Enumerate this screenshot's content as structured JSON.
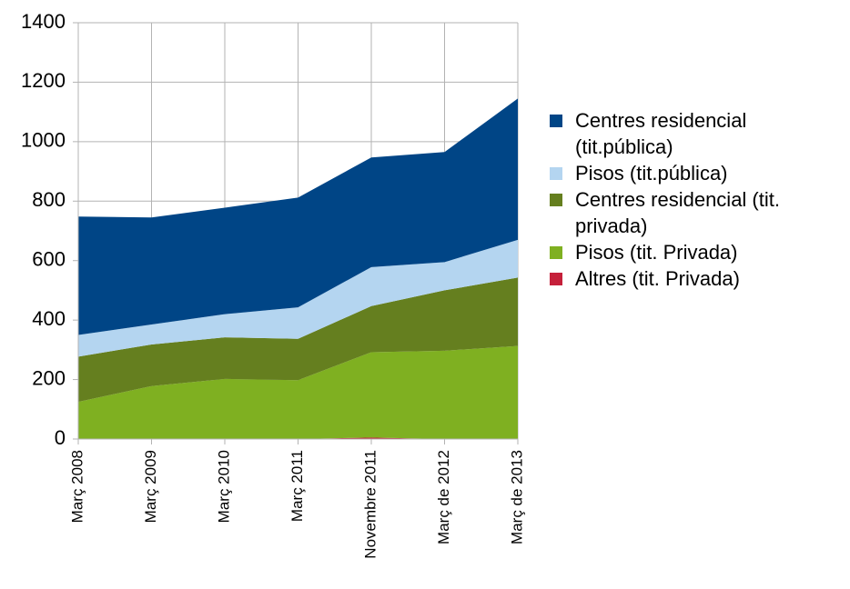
{
  "chart_data": {
    "type": "stacked_area",
    "categories": [
      "Març 2008",
      "Març 2009",
      "Març 2010",
      "Març 2011",
      "Novembre 2011",
      "Març de 2012",
      "Març de 2013"
    ],
    "series": [
      {
        "name": "Centres residencial (tit.pública)",
        "color": "#004586",
        "values": [
          398,
          360,
          358,
          369,
          369,
          370,
          475
        ]
      },
      {
        "name": "Pisos (tit.pública)",
        "color": "#b4d5f0",
        "values": [
          73,
          67,
          78,
          106,
          131,
          95,
          127
        ]
      },
      {
        "name": "Centres residencial (tit. privada)",
        "color": "#657f1f",
        "values": [
          152,
          140,
          140,
          139,
          155,
          203,
          230
        ]
      },
      {
        "name": "Pisos (tit. Privada)",
        "color": "#7fb021",
        "values": [
          125,
          178,
          202,
          198,
          287,
          297,
          313
        ]
      },
      {
        "name": "Altres (tit. Privada)",
        "color": "#c5203a",
        "values": [
          0,
          0,
          0,
          0,
          5,
          0,
          0
        ]
      }
    ],
    "ylim": [
      0,
      1400
    ],
    "yticks": [
      0,
      200,
      400,
      600,
      800,
      1000,
      1200,
      1400
    ],
    "grid": true,
    "legend": "right"
  }
}
